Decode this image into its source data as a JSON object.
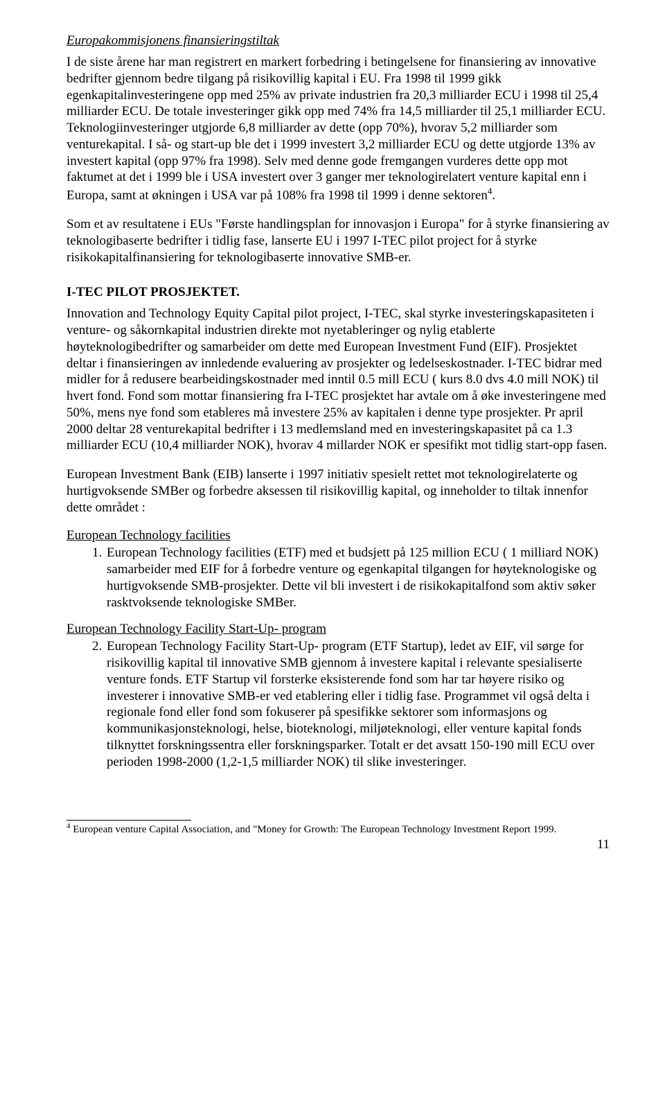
{
  "title": "Europakommisjonens finansieringstiltak",
  "p1": "I de siste årene har man registrert en markert forbedring i betingelsene for finansiering av innovative bedrifter gjennom bedre tilgang på risikovillig kapital i EU. Fra 1998 til 1999 gikk egenkapitalinvesteringene opp med 25% av private industrien fra 20,3 milliarder ECU i 1998 til 25,4 milliarder ECU. De totale investeringer gikk opp med 74% fra 14,5 milliarder til 25,1 milliarder ECU. Teknologiinvesteringer utgjorde 6,8 milliarder av dette (opp 70%), hvorav 5,2 milliarder som venturekapital. I så- og start-up ble det i 1999 investert 3,2 milliarder ECU og dette utgjorde 13% av investert kapital (opp 97% fra 1998). Selv med denne gode fremgangen vurderes dette opp mot faktumet at det i 1999 ble i USA investert over 3 ganger mer teknologirelatert venture kapital enn i Europa, samt at økningen i USA var på 108% fra 1998 til 1999 i denne sektoren",
  "p1_fn": "4",
  "p1_end": ".",
  "p2": "Som et av resultatene i EUs \"Første handlingsplan for innovasjon i Europa\" for å styrke finansiering av teknologibaserte bedrifter i tidlig fase, lanserte EU i 1997 I-TEC pilot project for å styrke risikokapitalfinansiering for teknologibaserte innovative SMB-er.",
  "h2": "I-TEC PILOT PROSJEKTET.",
  "p3": "Innovation and Technology Equity Capital pilot project, I-TEC, skal styrke investeringskapasiteten i venture- og såkornkapital industrien direkte mot nyetableringer og nylig etablerte høyteknologibedrifter og samarbeider om dette med European Investment Fund (EIF). Prosjektet deltar i finansieringen av innledende evaluering av prosjekter og ledelseskostnader. I-TEC bidrar med midler for å redusere bearbeidingskostnader med inntil 0.5 mill ECU ( kurs 8.0 dvs 4.0 mill NOK) til hvert fond. Fond som mottar finansiering fra I-TEC prosjektet har avtale om å øke investeringene med 50%, mens nye fond som etableres må investere 25% av kapitalen i denne type prosjekter. Pr april 2000 deltar 28 venturekapital bedrifter i 13 medlemsland med en investeringskapasitet på ca 1.3 milliarder ECU (10,4 milliarder NOK), hvorav 4 millarder NOK er spesifikt mot tidlig start-opp fasen.",
  "p4": "European Investment Bank (EIB) lanserte i 1997 initiativ spesielt rettet mot teknologirelaterte og hurtigvoksende SMBer og forbedre aksessen til risikovillig kapital, og inneholder to tiltak innenfor dette området :",
  "h3a": "European Technology facilities",
  "li1": "European Technology facilities (ETF) med et budsjett på 125 million ECU ( 1 milliard NOK) samarbeider med EIF for å forbedre  venture og egenkapital tilgangen for høyteknologiske og hurtigvoksende SMB-prosjekter. Dette vil bli investert i de risikokapitalfond som aktiv søker rasktvoksende teknologiske SMBer.",
  "h3b": "European Technology Facility Start-Up- program",
  "li2": "European Technology Facility Start-Up- program (ETF Startup), ledet av EIF, vil sørge for risikovillig kapital til innovative SMB gjennom å investere kapital i relevante spesialiserte venture fonds. ETF Startup vil forsterke eksisterende fond som har tar høyere risiko og investerer i innovative SMB-er ved etablering eller i tidlig fase.  Programmet vil også delta i regionale fond eller fond som fokuserer på spesifikke sektorer som informasjons og kommunikasjonsteknologi, helse, bioteknologi, miljøteknologi, eller venture kapital fonds tilknyttet forskningssentra eller forskningsparker. Totalt er det avsatt  150-190 mill ECU over perioden 1998-2000 (1,2-1,5 milliarder NOK) til slike investeringer.",
  "footnote_num": "4",
  "footnote_text": " European venture Capital Association, and \"Money for Growth: The European Technology Investment Report 1999.",
  "page_num": "11"
}
